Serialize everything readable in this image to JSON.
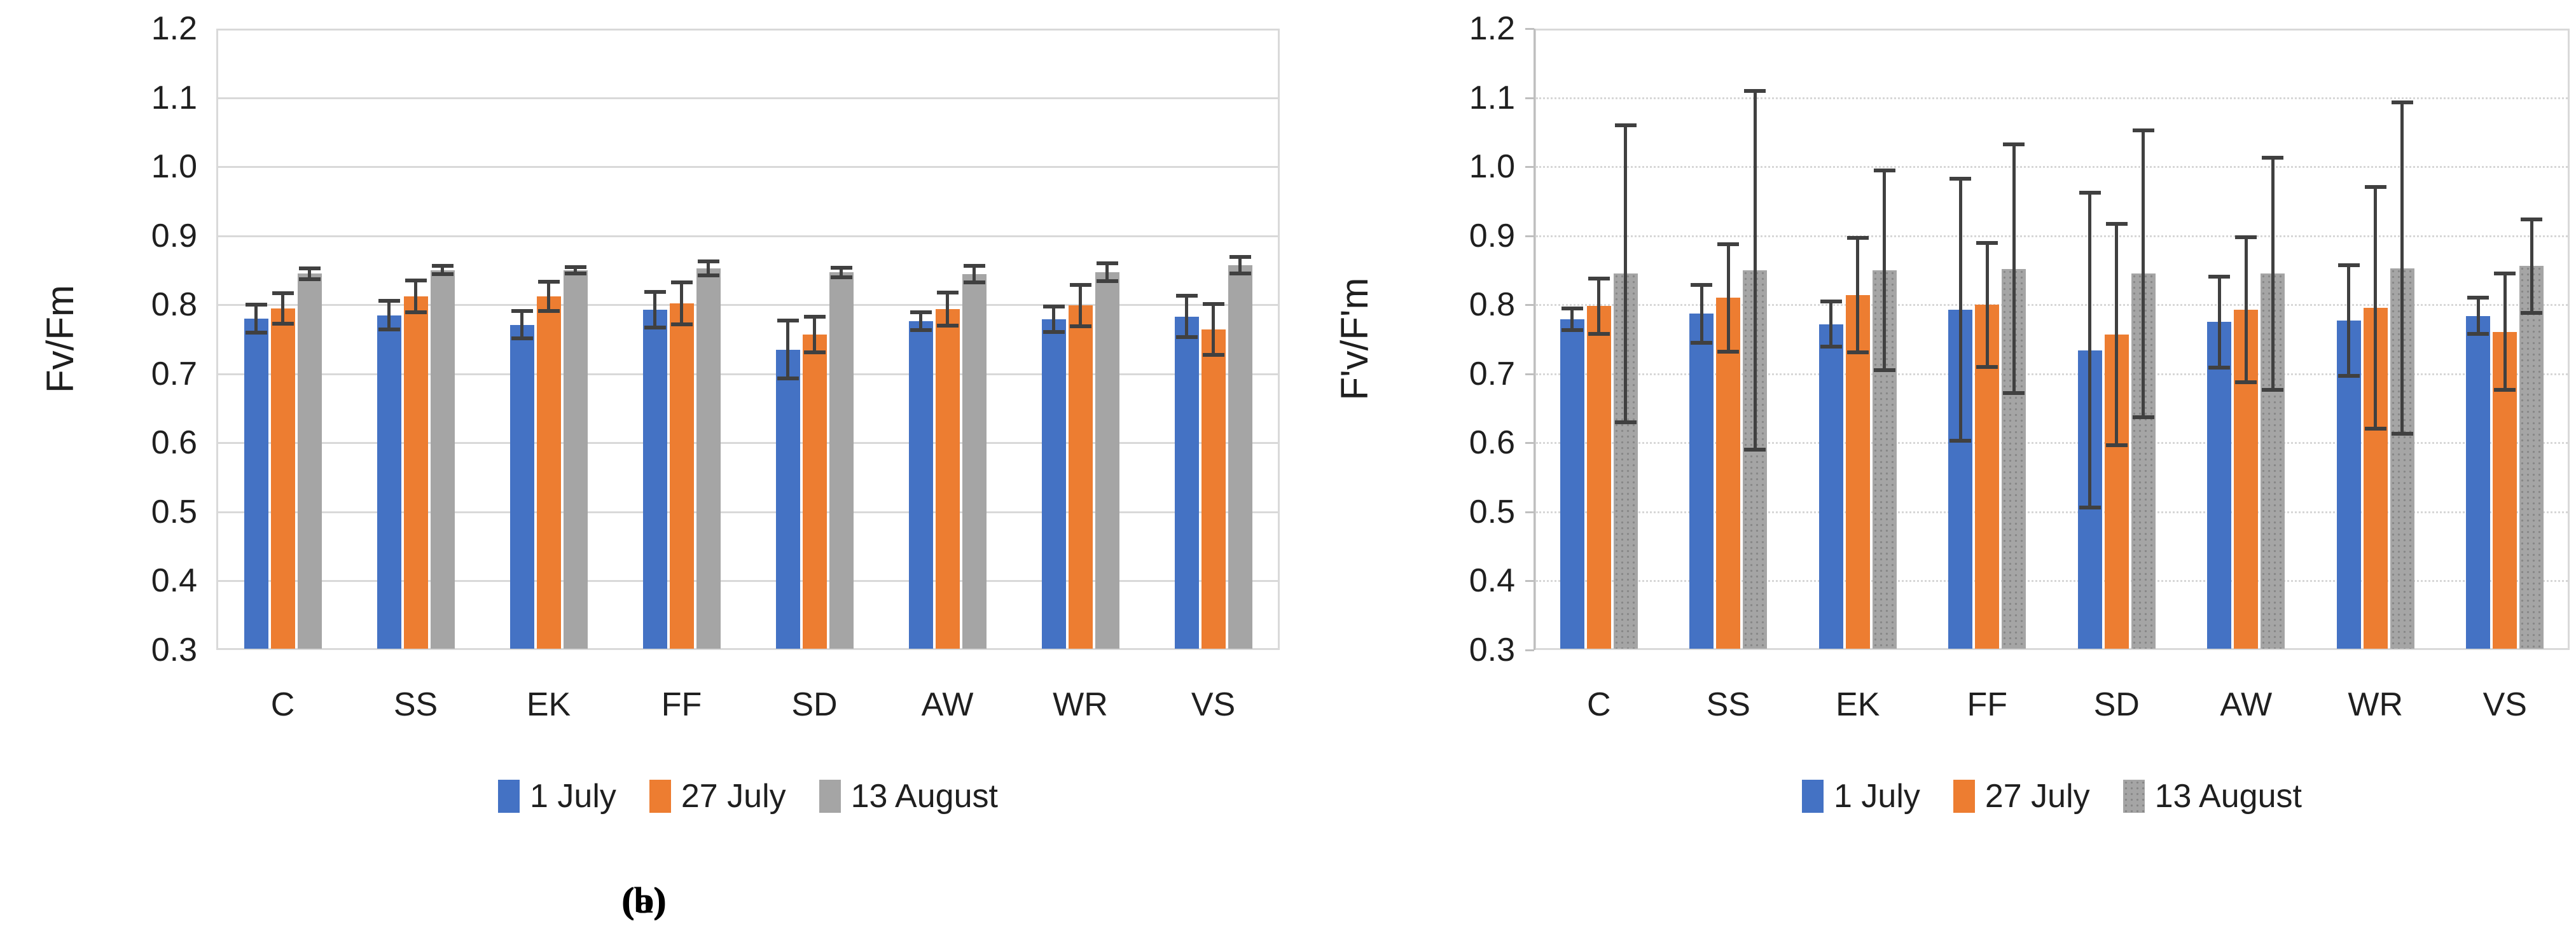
{
  "figure": {
    "captions": [
      "(a)",
      "(b)"
    ],
    "background": "#ffffff",
    "error_bar_color": "#404040",
    "gridline_color": "#d9d9d9"
  },
  "chart_data": [
    {
      "type": "bar",
      "panel": "a",
      "title": "",
      "xlabel": "",
      "ylabel": "Fv/Fm",
      "ylim": [
        0.3,
        1.2
      ],
      "yticks": [
        "1.2",
        "1.1",
        "1.0",
        "0.9",
        "0.8",
        "0.7",
        "0.6",
        "0.5",
        "0.4",
        "0.3"
      ],
      "grid": "solid",
      "axis_ticks": false,
      "legend_position": "bottom",
      "categories": [
        "C",
        "SS",
        "EK",
        "FF",
        "SD",
        "AW",
        "WR",
        "VS"
      ],
      "series": [
        {
          "name": "1 July",
          "color": "#4472C4",
          "pattern": false,
          "values": [
            0.78,
            0.785,
            0.771,
            0.793,
            0.735,
            0.776,
            0.779,
            0.783
          ],
          "errors": [
            0.02,
            0.021,
            0.02,
            0.026,
            0.042,
            0.013,
            0.018,
            0.03
          ]
        },
        {
          "name": "27 July",
          "color": "#ED7D31",
          "pattern": false,
          "values": [
            0.795,
            0.812,
            0.812,
            0.802,
            0.757,
            0.794,
            0.799,
            0.764
          ],
          "errors": [
            0.022,
            0.023,
            0.021,
            0.03,
            0.026,
            0.024,
            0.03,
            0.037
          ]
        },
        {
          "name": "13 August",
          "color": "#A5A5A5",
          "pattern": false,
          "values": [
            0.845,
            0.85,
            0.85,
            0.853,
            0.847,
            0.844,
            0.847,
            0.857
          ],
          "errors": [
            0.008,
            0.006,
            0.005,
            0.01,
            0.007,
            0.012,
            0.013,
            0.012
          ]
        }
      ]
    },
    {
      "type": "bar",
      "panel": "b",
      "title": "",
      "xlabel": "",
      "ylabel": "F'v/F'm",
      "ylim": [
        0.3,
        1.2
      ],
      "yticks": [
        "1.2",
        "1.1",
        "1.0",
        "0.9",
        "0.8",
        "0.7",
        "0.6",
        "0.5",
        "0.4",
        "0.3"
      ],
      "grid": "dotted",
      "axis_ticks": true,
      "legend_position": "bottom",
      "categories": [
        "C",
        "SS",
        "EK",
        "FF",
        "SD",
        "AW",
        "WR",
        "VS"
      ],
      "series": [
        {
          "name": "1 July",
          "color": "#4472C4",
          "pattern": false,
          "values": [
            0.779,
            0.787,
            0.772,
            0.793,
            0.734,
            0.775,
            0.777,
            0.784
          ],
          "errors": [
            0.016,
            0.042,
            0.033,
            0.19,
            0.228,
            0.066,
            0.08,
            0.026
          ]
        },
        {
          "name": "27 July",
          "color": "#ED7D31",
          "pattern": false,
          "values": [
            0.798,
            0.81,
            0.814,
            0.8,
            0.757,
            0.793,
            0.796,
            0.761
          ],
          "errors": [
            0.04,
            0.078,
            0.083,
            0.09,
            0.16,
            0.105,
            0.175,
            0.084
          ]
        },
        {
          "name": "13 August",
          "color": "#A5A5A5",
          "pattern": true,
          "values": [
            0.845,
            0.85,
            0.85,
            0.852,
            0.845,
            0.845,
            0.853,
            0.856
          ],
          "errors": [
            0.215,
            0.26,
            0.145,
            0.18,
            0.208,
            0.168,
            0.24,
            0.068
          ]
        }
      ]
    }
  ]
}
